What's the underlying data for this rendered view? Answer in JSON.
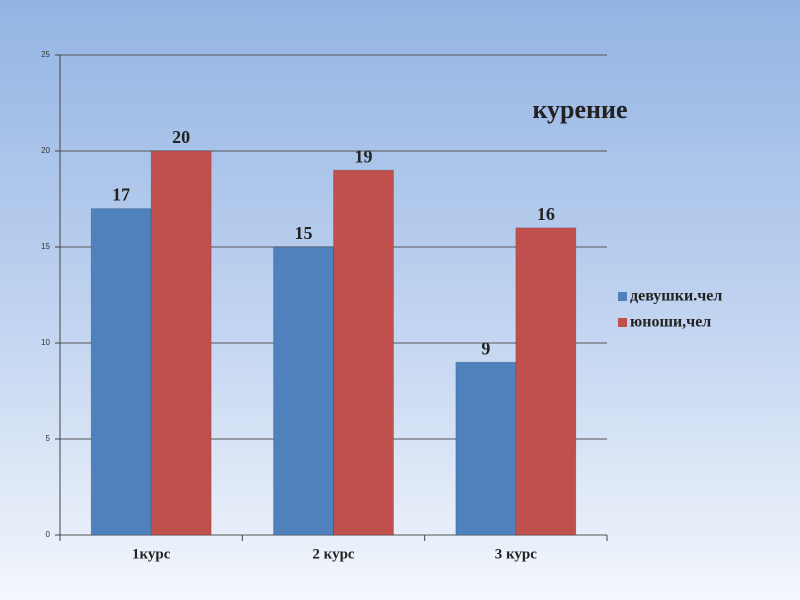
{
  "chart_data": {
    "type": "bar",
    "title": "курение",
    "categories": [
      "1курс",
      "2 курс",
      "3 курс"
    ],
    "series": [
      {
        "name": "девушки.чел",
        "color": "#4f81bd",
        "values": [
          17,
          15,
          9
        ]
      },
      {
        "name": "юноши,чел",
        "color": "#c0504d",
        "values": [
          20,
          19,
          16
        ]
      }
    ],
    "ylim": [
      0,
      25
    ],
    "yticks": [
      0,
      5,
      10,
      15,
      20,
      25
    ],
    "grid": true,
    "legend": "right"
  }
}
